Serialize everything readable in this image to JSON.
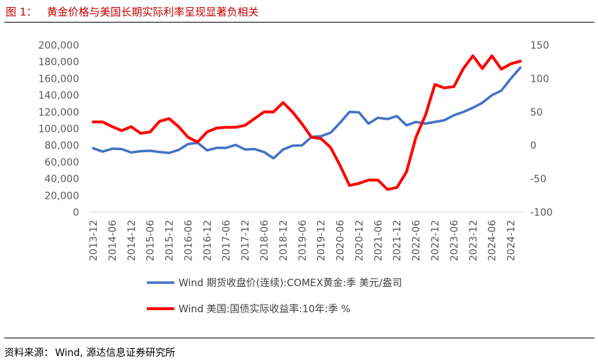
{
  "header": {
    "figure_label": "图 1：",
    "title": "黄金价格与美国长期实际利率呈现显著负相关"
  },
  "footer": {
    "source_label": "资料来源：",
    "source_text": "Wind, 源达信息证券研究所"
  },
  "colors": {
    "gold_series": "#4472c4",
    "rate_series": "#ff0000",
    "title": "#c00000",
    "axis_text": "#595959",
    "axis_line": "#d9d9d9"
  },
  "chart_data": {
    "type": "line",
    "title": "",
    "grid": false,
    "legend_position": "bottom",
    "x": [
      "2013-12",
      "2014-03",
      "2014-06",
      "2014-09",
      "2014-12",
      "2015-03",
      "2015-06",
      "2015-09",
      "2015-12",
      "2016-03",
      "2016-06",
      "2016-09",
      "2016-12",
      "2017-03",
      "2017-06",
      "2017-09",
      "2017-12",
      "2018-03",
      "2018-06",
      "2018-09",
      "2018-12",
      "2019-03",
      "2019-06",
      "2019-09",
      "2019-12",
      "2020-03",
      "2020-06",
      "2020-09",
      "2020-12",
      "2021-03",
      "2021-06",
      "2021-09",
      "2021-12",
      "2022-03",
      "2022-06",
      "2022-09",
      "2022-12",
      "2023-03",
      "2023-06",
      "2023-09",
      "2023-12",
      "2024-03",
      "2024-06",
      "2024-09",
      "2024-12",
      "2025-03"
    ],
    "x_tick_labels": [
      "2013-12",
      "2014-06",
      "2014-12",
      "2015-06",
      "2015-12",
      "2016-06",
      "2016-12",
      "2017-06",
      "2017-12",
      "2018-06",
      "2018-12",
      "2019-06",
      "2019-12",
      "2020-06",
      "2020-12",
      "2021-06",
      "2021-12",
      "2022-06",
      "2022-12",
      "2023-06",
      "2023-12",
      "2024-06",
      "2024-12"
    ],
    "y_left": {
      "ylim": [
        0,
        200000
      ],
      "ticks": [
        "0",
        "20,000",
        "40,000",
        "60,000",
        "80,000",
        "100,000",
        "120,000",
        "140,000",
        "160,000",
        "180,000",
        "200,000"
      ]
    },
    "y_right": {
      "ylim": [
        -100,
        150
      ],
      "ticks": [
        "-100",
        "-50",
        "0",
        "50",
        "100",
        "150"
      ]
    },
    "series": [
      {
        "name": "Wind 期货收盘价(连续):COMEX黄金:季 美元/盎司",
        "axis": "left",
        "values": [
          76500,
          72500,
          76000,
          75500,
          71500,
          73000,
          73500,
          72000,
          71000,
          74500,
          81500,
          83000,
          74000,
          77000,
          77000,
          80500,
          75000,
          75500,
          72000,
          64500,
          75000,
          79500,
          80000,
          90000,
          91000,
          95000,
          107000,
          120000,
          119500,
          106000,
          113000,
          111500,
          115000,
          104000,
          108000,
          106000,
          108000,
          110000,
          116000,
          120000,
          125000,
          131000,
          140000,
          145500,
          160000,
          173000
        ]
      },
      {
        "name": "Wind 美国:国债实际收益率:10年:季 %",
        "axis": "right",
        "values": [
          35,
          35,
          28,
          22,
          28,
          18,
          20,
          36,
          40,
          28,
          12,
          5,
          20,
          26,
          27,
          27,
          30,
          40,
          50,
          50,
          64,
          50,
          32,
          12,
          10,
          -3,
          -30,
          -60,
          -57,
          -52,
          -52,
          -66,
          -63,
          -40,
          12,
          45,
          91,
          86,
          88,
          115,
          134,
          115,
          134,
          114,
          122,
          126
        ]
      }
    ]
  }
}
